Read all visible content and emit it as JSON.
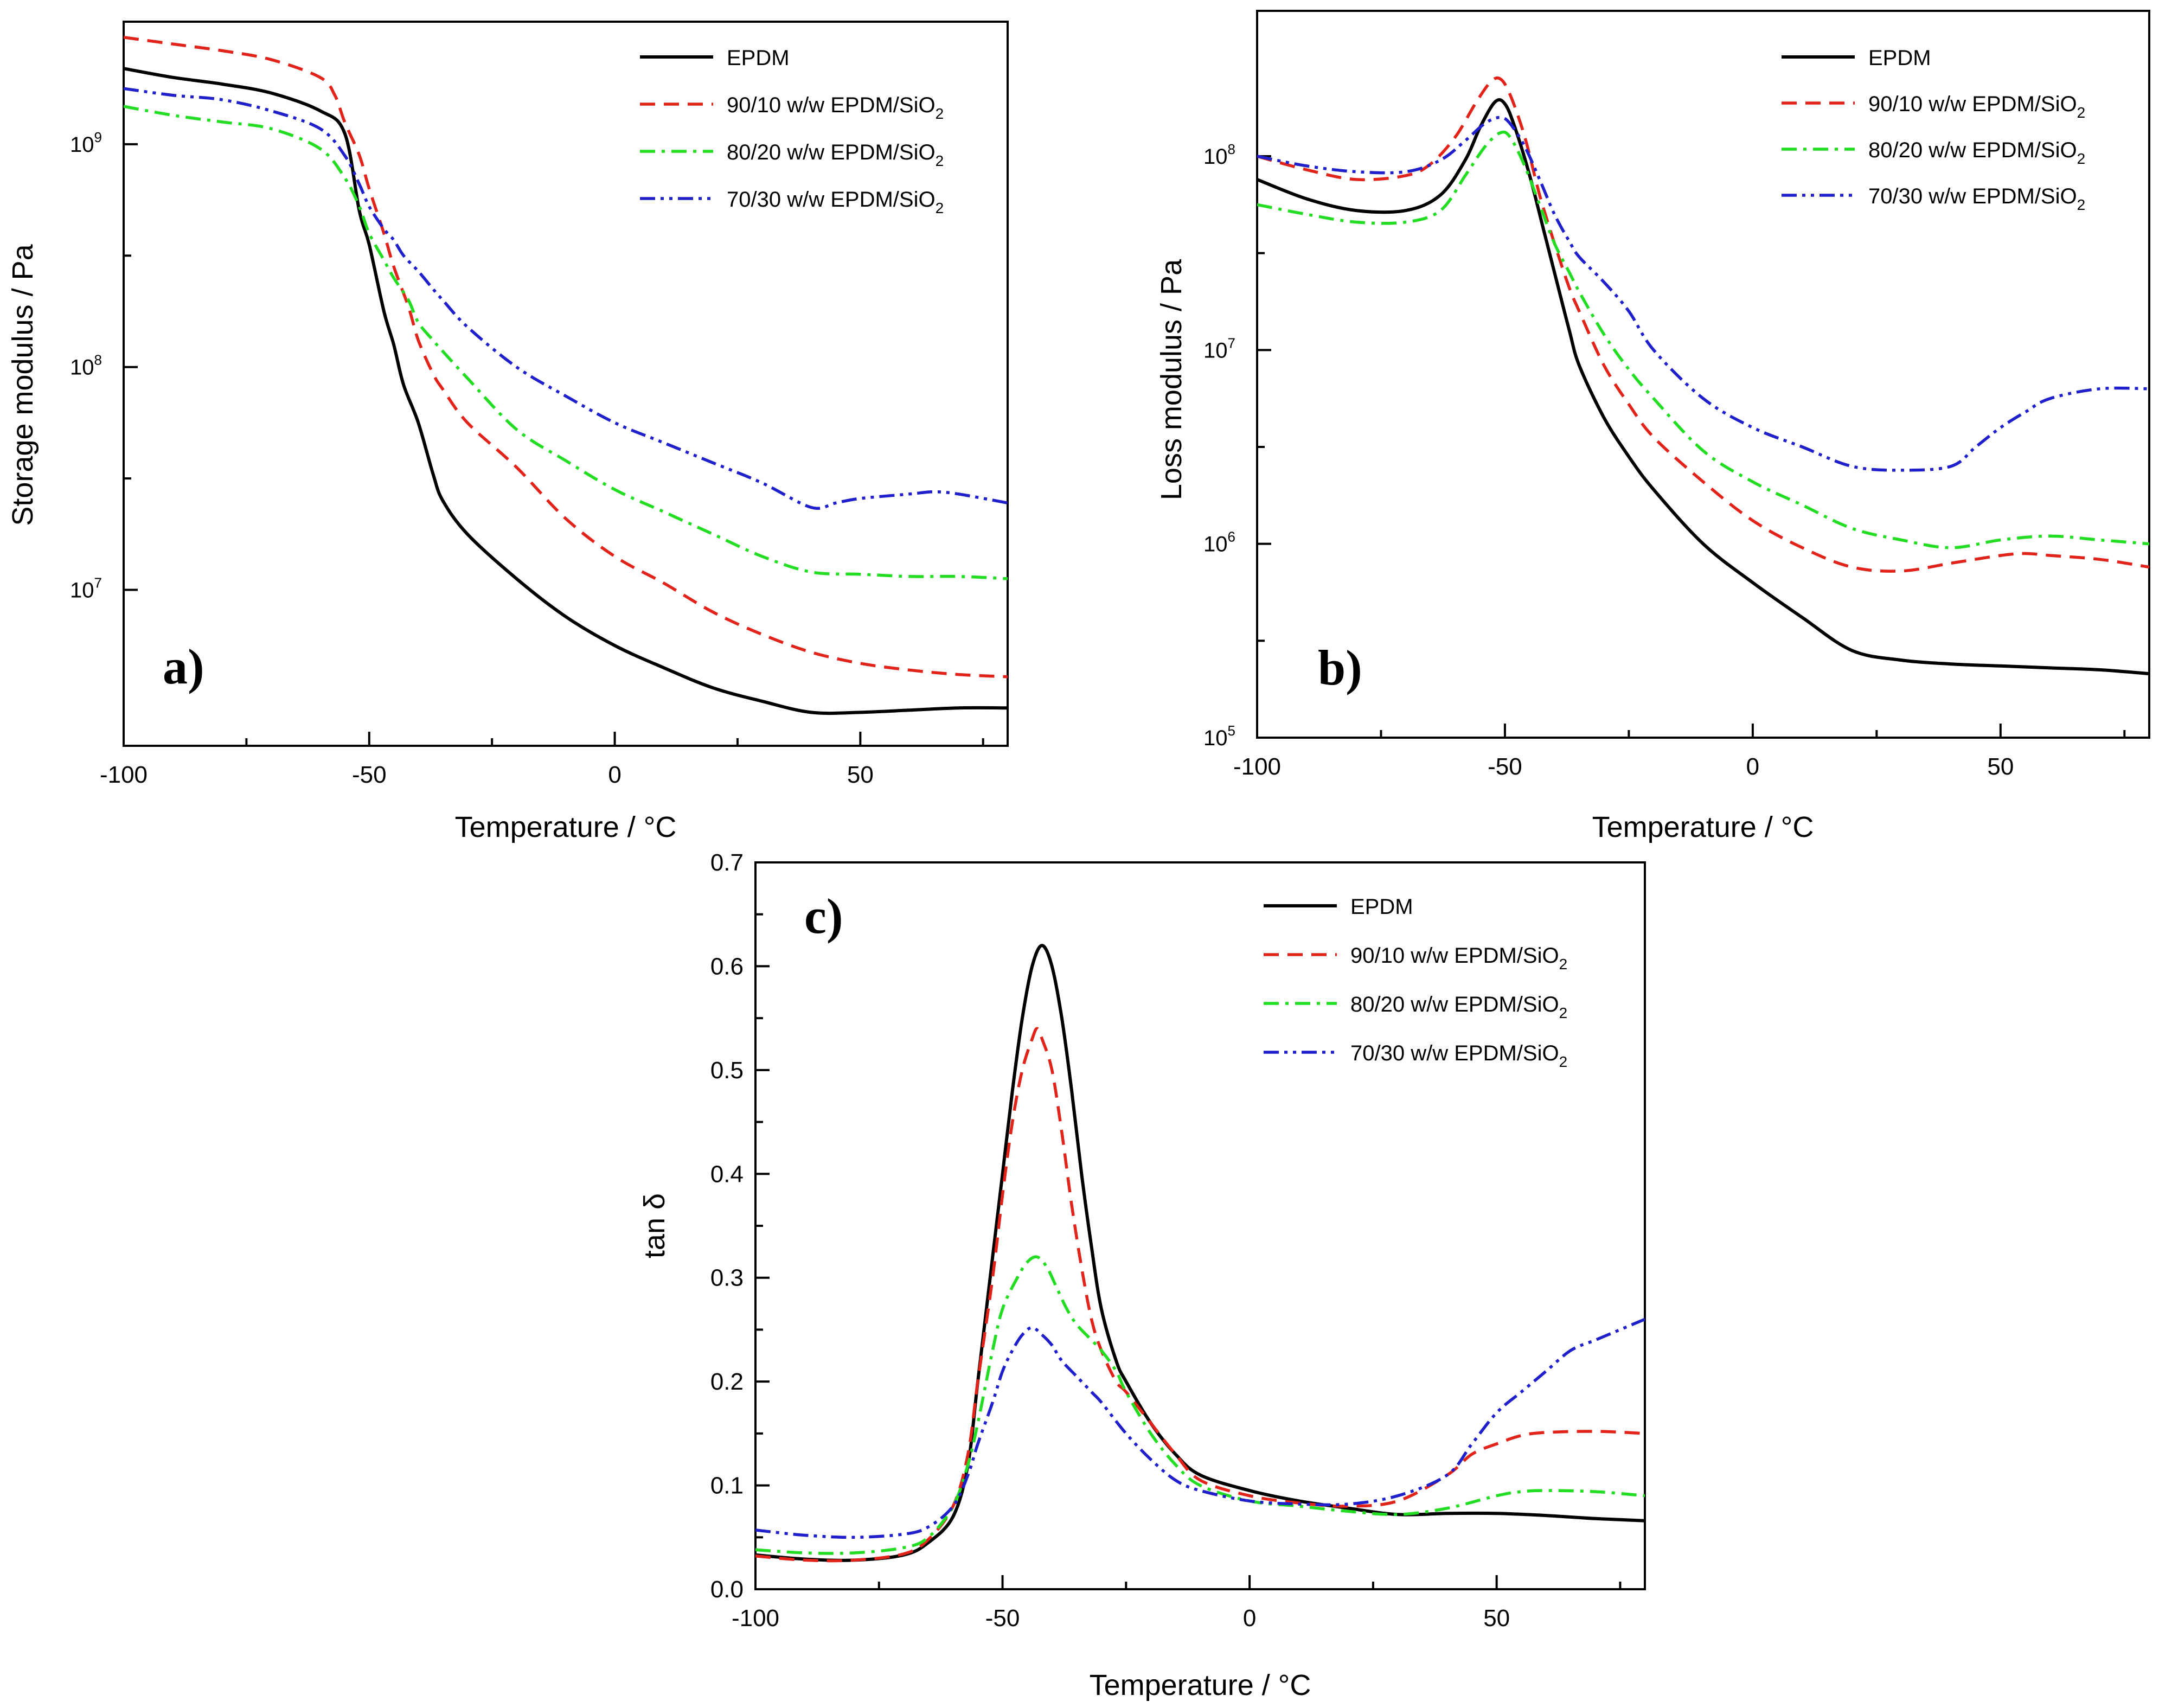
{
  "chart_data": [
    {
      "id": "a",
      "type": "line",
      "panel_label": "a)",
      "xlabel": "Temperature / °C",
      "ylabel": "Storage modulus / Pa",
      "yscale": "log",
      "xlim": [
        -100,
        80
      ],
      "ylim_log10": [
        6.3,
        9.55
      ],
      "xticks": [
        -100,
        -50,
        0,
        50
      ],
      "xtick_labels": [
        "-100",
        "-50",
        "0",
        "50"
      ],
      "yticks_log10": [
        7,
        8,
        9
      ],
      "ytick_bases": [
        "10",
        "10",
        "10"
      ],
      "ytick_exponents": [
        "7",
        "8",
        "9"
      ],
      "legend_position": "top-right",
      "series": [
        {
          "name": "EPDM",
          "subscript": "",
          "color": "#000000",
          "dash": "solid",
          "x": [
            -100,
            -90,
            -80,
            -70,
            -60,
            -55,
            -52,
            -50,
            -47,
            -45,
            -43,
            -40,
            -37,
            -35,
            -30,
            -20,
            -10,
            0,
            10,
            20,
            30,
            40,
            50,
            60,
            70,
            80
          ],
          "log10_y": [
            9.34,
            9.3,
            9.27,
            9.23,
            9.15,
            9.05,
            8.7,
            8.55,
            8.25,
            8.1,
            7.92,
            7.75,
            7.52,
            7.4,
            7.25,
            7.05,
            6.88,
            6.75,
            6.65,
            6.56,
            6.5,
            6.45,
            6.45,
            6.46,
            6.47,
            6.47
          ]
        },
        {
          "name": "90/10 w/w EPDM/SiO",
          "subscript": "2",
          "color": "#e2231a",
          "dash": "dash",
          "x": [
            -100,
            -90,
            -80,
            -70,
            -60,
            -57,
            -55,
            -52,
            -50,
            -47,
            -45,
            -42,
            -40,
            -37,
            -35,
            -30,
            -20,
            -10,
            0,
            10,
            20,
            30,
            40,
            50,
            60,
            70,
            80
          ],
          "log10_y": [
            9.48,
            9.45,
            9.42,
            9.38,
            9.3,
            9.22,
            9.1,
            8.95,
            8.8,
            8.6,
            8.45,
            8.27,
            8.12,
            7.97,
            7.9,
            7.75,
            7.55,
            7.32,
            7.15,
            7.03,
            6.9,
            6.8,
            6.72,
            6.67,
            6.64,
            6.62,
            6.61
          ]
        },
        {
          "name": "80/20 w/w EPDM/SiO",
          "subscript": "2",
          "color": "#22dd22",
          "dash": "dashdot",
          "x": [
            -100,
            -90,
            -80,
            -70,
            -60,
            -55,
            -52,
            -50,
            -47,
            -45,
            -42,
            -40,
            -37,
            -35,
            -30,
            -20,
            -10,
            0,
            10,
            20,
            30,
            40,
            50,
            60,
            70,
            80
          ],
          "log10_y": [
            9.17,
            9.13,
            9.1,
            9.07,
            8.98,
            8.85,
            8.72,
            8.6,
            8.48,
            8.4,
            8.3,
            8.2,
            8.12,
            8.07,
            7.95,
            7.72,
            7.58,
            7.45,
            7.35,
            7.25,
            7.15,
            7.08,
            7.07,
            7.06,
            7.06,
            7.05
          ]
        },
        {
          "name": "70/30 w/w EPDM/SiO",
          "subscript": "2",
          "color": "#1f1fcc",
          "dash": "dashdotdot",
          "x": [
            -100,
            -90,
            -80,
            -70,
            -60,
            -55,
            -52,
            -50,
            -47,
            -45,
            -43,
            -40,
            -37,
            -35,
            -30,
            -20,
            -10,
            0,
            10,
            20,
            30,
            40,
            45,
            50,
            60,
            65,
            70,
            80
          ],
          "log10_y": [
            9.25,
            9.22,
            9.2,
            9.15,
            9.07,
            8.95,
            8.82,
            8.72,
            8.62,
            8.57,
            8.5,
            8.43,
            8.35,
            8.3,
            8.18,
            8.0,
            7.87,
            7.75,
            7.66,
            7.57,
            7.48,
            7.37,
            7.39,
            7.41,
            7.43,
            7.44,
            7.43,
            7.39
          ]
        }
      ]
    },
    {
      "id": "b",
      "type": "line",
      "panel_label": "b)",
      "xlabel": "Temperature / °C",
      "ylabel": "Loss modulus / Pa",
      "yscale": "log",
      "xlim": [
        -100,
        80
      ],
      "ylim_log10": [
        5.0,
        8.75
      ],
      "xticks": [
        -100,
        -50,
        0,
        50
      ],
      "xtick_labels": [
        "-100",
        "-50",
        "0",
        "50"
      ],
      "yticks_log10": [
        5,
        6,
        7,
        8
      ],
      "ytick_bases": [
        "10",
        "10",
        "10",
        "10"
      ],
      "ytick_exponents": [
        "5",
        "6",
        "7",
        "8"
      ],
      "legend_position": "top-right",
      "series": [
        {
          "name": "EPDM",
          "subscript": "",
          "color": "#000000",
          "dash": "solid",
          "x": [
            -100,
            -90,
            -80,
            -70,
            -63,
            -58,
            -55,
            -52,
            -50,
            -48,
            -45,
            -42,
            -40,
            -37,
            -35,
            -30,
            -25,
            -20,
            -10,
            0,
            10,
            20,
            30,
            40,
            50,
            60,
            70,
            80
          ],
          "log10_y": [
            7.88,
            7.78,
            7.72,
            7.72,
            7.8,
            7.98,
            8.15,
            8.28,
            8.27,
            8.15,
            7.9,
            7.6,
            7.4,
            7.1,
            6.92,
            6.65,
            6.45,
            6.28,
            6.0,
            5.8,
            5.62,
            5.45,
            5.4,
            5.38,
            5.37,
            5.36,
            5.35,
            5.33
          ]
        },
        {
          "name": "90/10 w/w EPDM/SiO",
          "subscript": "2",
          "color": "#e2231a",
          "dash": "dash",
          "x": [
            -100,
            -90,
            -80,
            -70,
            -65,
            -60,
            -56,
            -53,
            -51,
            -49,
            -46,
            -43,
            -40,
            -37,
            -35,
            -30,
            -25,
            -20,
            -10,
            0,
            10,
            20,
            30,
            40,
            50,
            55,
            60,
            70,
            80
          ],
          "log10_y": [
            8.0,
            7.93,
            7.88,
            7.9,
            7.96,
            8.1,
            8.27,
            8.38,
            8.4,
            8.32,
            8.1,
            7.8,
            7.55,
            7.32,
            7.2,
            6.92,
            6.72,
            6.55,
            6.32,
            6.12,
            5.98,
            5.88,
            5.86,
            5.9,
            5.94,
            5.95,
            5.94,
            5.92,
            5.88
          ]
        },
        {
          "name": "80/20 w/w EPDM/SiO",
          "subscript": "2",
          "color": "#22dd22",
          "dash": "dashdot",
          "x": [
            -100,
            -90,
            -80,
            -70,
            -63,
            -58,
            -54,
            -51,
            -49,
            -46,
            -43,
            -40,
            -37,
            -35,
            -30,
            -25,
            -20,
            -10,
            0,
            10,
            20,
            30,
            40,
            50,
            60,
            70,
            80
          ],
          "log10_y": [
            7.75,
            7.7,
            7.66,
            7.66,
            7.72,
            7.9,
            8.05,
            8.12,
            8.1,
            7.95,
            7.75,
            7.55,
            7.4,
            7.3,
            7.08,
            6.9,
            6.75,
            6.48,
            6.32,
            6.2,
            6.08,
            6.02,
            5.98,
            6.02,
            6.04,
            6.02,
            6.0
          ]
        },
        {
          "name": "70/30 w/w EPDM/SiO",
          "subscript": "2",
          "color": "#1f1fcc",
          "dash": "dashdotdot",
          "x": [
            -100,
            -90,
            -80,
            -70,
            -63,
            -58,
            -54,
            -51,
            -49,
            -46,
            -43,
            -40,
            -37,
            -35,
            -30,
            -25,
            -20,
            -10,
            0,
            10,
            20,
            30,
            40,
            45,
            50,
            55,
            60,
            70,
            80
          ],
          "log10_y": [
            8.0,
            7.95,
            7.92,
            7.92,
            7.98,
            8.08,
            8.17,
            8.2,
            8.17,
            8.05,
            7.88,
            7.7,
            7.56,
            7.48,
            7.35,
            7.2,
            7.0,
            6.75,
            6.6,
            6.5,
            6.4,
            6.38,
            6.4,
            6.5,
            6.6,
            6.68,
            6.75,
            6.8,
            6.8
          ]
        }
      ]
    },
    {
      "id": "c",
      "type": "line",
      "panel_label": "c)",
      "xlabel": "Temperature / °C",
      "ylabel": "tan δ",
      "yscale": "linear",
      "xlim": [
        -100,
        80
      ],
      "ylim": [
        0.0,
        0.7
      ],
      "xticks": [
        -100,
        -50,
        0,
        50
      ],
      "xtick_labels": [
        "-100",
        "-50",
        "0",
        "50"
      ],
      "yticks": [
        0.0,
        0.1,
        0.2,
        0.3,
        0.4,
        0.5,
        0.6,
        0.7
      ],
      "ytick_labels": [
        "0.0",
        "0.1",
        "0.2",
        "0.3",
        "0.4",
        "0.5",
        "0.6",
        "0.7"
      ],
      "legend_position": "top-right",
      "series": [
        {
          "name": "EPDM",
          "subscript": "",
          "color": "#000000",
          "dash": "solid",
          "x": [
            -100,
            -90,
            -80,
            -70,
            -65,
            -60,
            -57,
            -55,
            -52,
            -50,
            -48,
            -46,
            -44,
            -42,
            -40,
            -38,
            -36,
            -34,
            -32,
            -30,
            -27,
            -25,
            -20,
            -15,
            -10,
            0,
            10,
            20,
            30,
            40,
            50,
            60,
            70,
            80
          ],
          "y": [
            0.033,
            0.029,
            0.028,
            0.033,
            0.045,
            0.07,
            0.12,
            0.2,
            0.32,
            0.4,
            0.48,
            0.55,
            0.6,
            0.62,
            0.6,
            0.55,
            0.48,
            0.4,
            0.33,
            0.27,
            0.22,
            0.2,
            0.16,
            0.13,
            0.11,
            0.095,
            0.085,
            0.078,
            0.072,
            0.073,
            0.073,
            0.071,
            0.068,
            0.066
          ]
        },
        {
          "name": "90/10 w/w EPDM/SiO",
          "subscript": "2",
          "color": "#e2231a",
          "dash": "dash",
          "x": [
            -100,
            -90,
            -80,
            -70,
            -65,
            -60,
            -57,
            -55,
            -52,
            -50,
            -48,
            -46,
            -44,
            -43,
            -42,
            -40,
            -38,
            -36,
            -34,
            -32,
            -30,
            -27,
            -25,
            -20,
            -15,
            -10,
            0,
            10,
            20,
            30,
            40,
            45,
            50,
            55,
            60,
            70,
            80
          ],
          "y": [
            0.032,
            0.028,
            0.028,
            0.034,
            0.048,
            0.08,
            0.13,
            0.2,
            0.3,
            0.38,
            0.45,
            0.5,
            0.53,
            0.54,
            0.53,
            0.5,
            0.44,
            0.37,
            0.31,
            0.26,
            0.23,
            0.2,
            0.19,
            0.16,
            0.13,
            0.105,
            0.09,
            0.083,
            0.08,
            0.085,
            0.11,
            0.13,
            0.14,
            0.148,
            0.151,
            0.152,
            0.15
          ]
        },
        {
          "name": "80/20 w/w EPDM/SiO",
          "subscript": "2",
          "color": "#22dd22",
          "dash": "dashdot",
          "x": [
            -100,
            -90,
            -80,
            -70,
            -65,
            -60,
            -57,
            -55,
            -52,
            -50,
            -47,
            -45,
            -43,
            -41,
            -39,
            -37,
            -35,
            -32,
            -30,
            -27,
            -25,
            -20,
            -15,
            -10,
            0,
            10,
            20,
            30,
            40,
            50,
            55,
            60,
            70,
            80
          ],
          "y": [
            0.038,
            0.035,
            0.035,
            0.04,
            0.05,
            0.08,
            0.12,
            0.16,
            0.23,
            0.27,
            0.3,
            0.315,
            0.32,
            0.31,
            0.29,
            0.27,
            0.255,
            0.24,
            0.23,
            0.21,
            0.19,
            0.15,
            0.12,
            0.1,
            0.085,
            0.08,
            0.075,
            0.072,
            0.078,
            0.09,
            0.094,
            0.095,
            0.094,
            0.09
          ]
        },
        {
          "name": "70/30 w/w EPDM/SiO",
          "subscript": "2",
          "color": "#1f1fcc",
          "dash": "dashdotdot",
          "x": [
            -100,
            -90,
            -80,
            -70,
            -65,
            -60,
            -57,
            -55,
            -52,
            -50,
            -48,
            -46,
            -44,
            -42,
            -40,
            -38,
            -35,
            -32,
            -30,
            -25,
            -20,
            -15,
            -10,
            0,
            10,
            20,
            30,
            40,
            45,
            50,
            55,
            60,
            65,
            70,
            75,
            80
          ],
          "y": [
            0.057,
            0.052,
            0.05,
            0.053,
            0.06,
            0.08,
            0.11,
            0.14,
            0.18,
            0.21,
            0.23,
            0.245,
            0.252,
            0.245,
            0.235,
            0.22,
            0.205,
            0.19,
            0.18,
            0.15,
            0.125,
            0.105,
            0.095,
            0.085,
            0.082,
            0.082,
            0.09,
            0.11,
            0.14,
            0.17,
            0.19,
            0.21,
            0.23,
            0.24,
            0.25,
            0.26
          ]
        }
      ]
    }
  ]
}
